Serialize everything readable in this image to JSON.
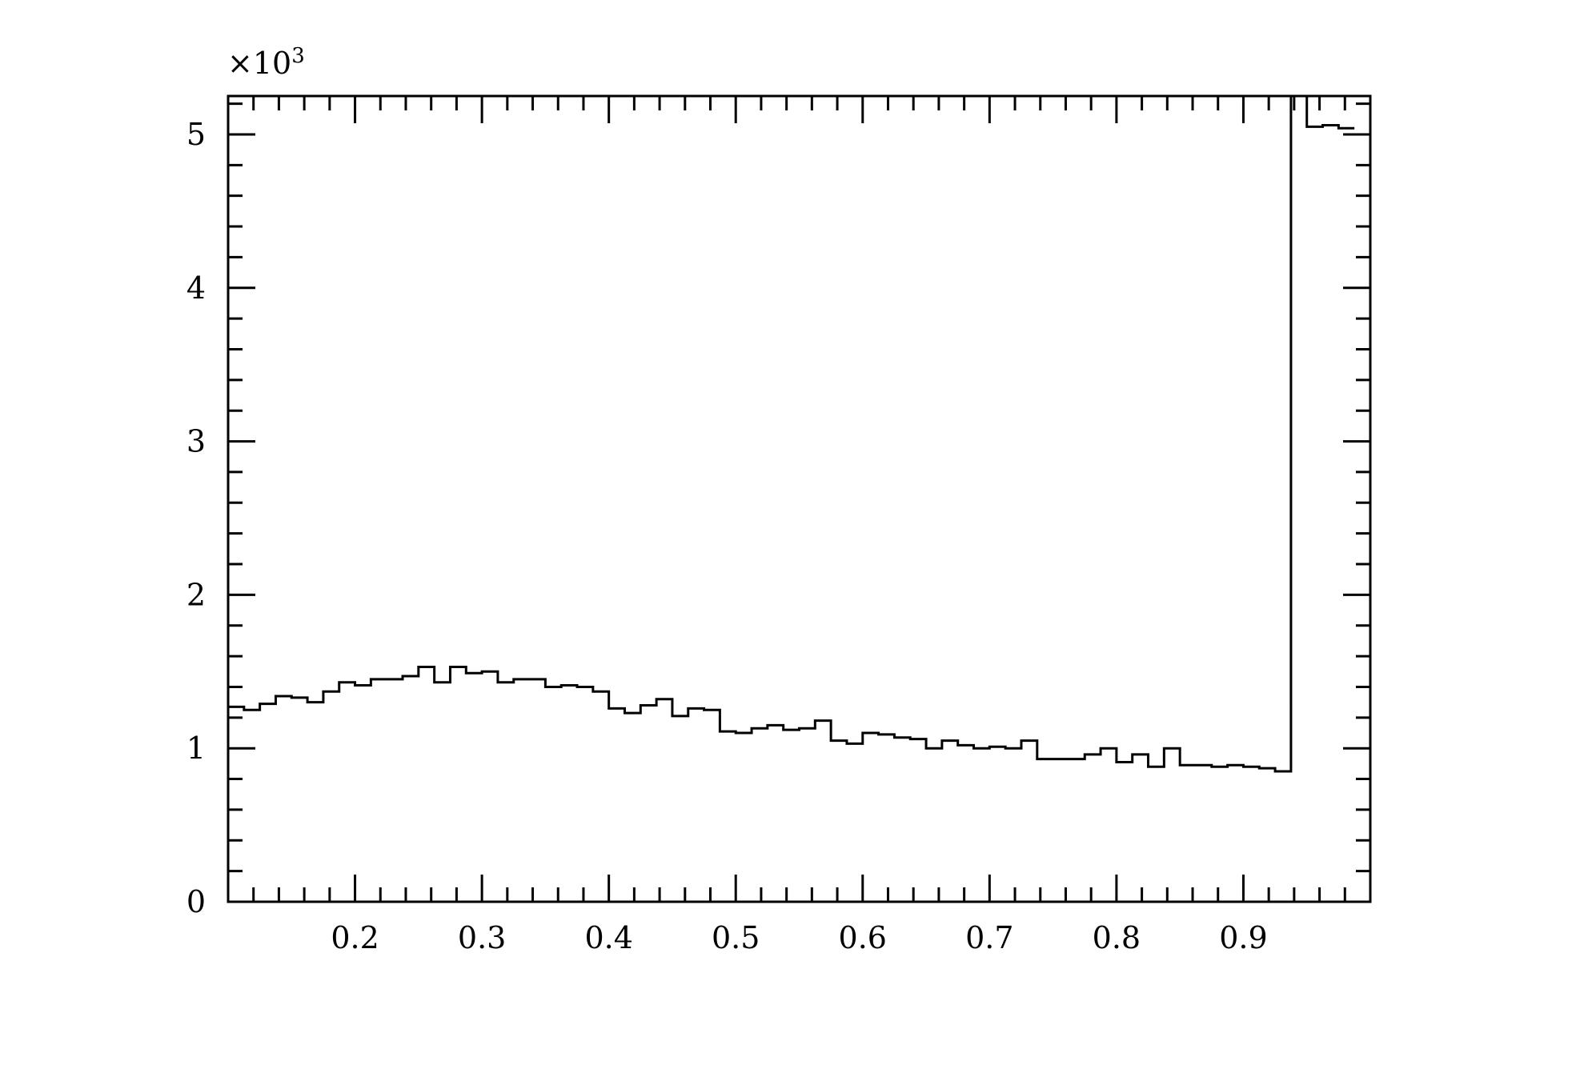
{
  "chart_data": {
    "type": "histogram",
    "title": "",
    "xlabel": "",
    "ylabel": "",
    "y_multiplier_label": "×10",
    "y_multiplier_exponent": "3",
    "xlim": [
      0.1,
      1.0
    ],
    "ylim": [
      0,
      5.25
    ],
    "x_ticks": [
      0.2,
      0.3,
      0.4,
      0.5,
      0.6,
      0.7,
      0.8,
      0.9
    ],
    "x_tick_labels": [
      "0.2",
      "0.3",
      "0.4",
      "0.5",
      "0.6",
      "0.7",
      "0.8",
      "0.9"
    ],
    "y_ticks": [
      0,
      1,
      2,
      3,
      4,
      5
    ],
    "y_tick_labels": [
      "0",
      "1",
      "2",
      "3",
      "4",
      "5"
    ],
    "grid": false,
    "bin_width": 0.0125,
    "bin_start": 0.1,
    "values": [
      1.27,
      1.25,
      1.29,
      1.34,
      1.33,
      1.3,
      1.37,
      1.43,
      1.41,
      1.45,
      1.45,
      1.47,
      1.53,
      1.43,
      1.53,
      1.49,
      1.5,
      1.43,
      1.45,
      1.45,
      1.4,
      1.41,
      1.4,
      1.37,
      1.26,
      1.23,
      1.28,
      1.32,
      1.21,
      1.26,
      1.25,
      1.11,
      1.1,
      1.13,
      1.15,
      1.12,
      1.13,
      1.18,
      1.05,
      1.03,
      1.1,
      1.09,
      1.07,
      1.06,
      1.0,
      1.05,
      1.02,
      1.0,
      1.01,
      1.0,
      1.05,
      0.93,
      0.93,
      0.93,
      0.96,
      1.0,
      0.91,
      0.96,
      0.88,
      1.0,
      0.89,
      0.89,
      0.88,
      0.89,
      0.88,
      0.87,
      0.85,
      5.3,
      5.05,
      5.06,
      5.04
    ]
  }
}
